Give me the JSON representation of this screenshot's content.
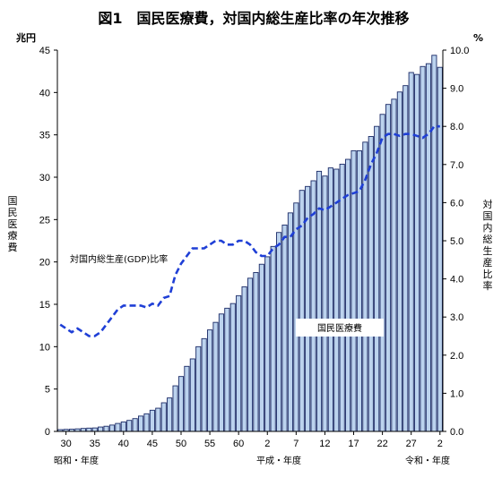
{
  "chart_data": {
    "type": "bar",
    "title": "図1　国民医療費，対国内総生産比率の年次推移",
    "y_unit_left": "兆円",
    "y_unit_right": "%",
    "y_label_left": "国民医療費",
    "y_label_right": "対国内総生産比率",
    "ylim_left": [
      0,
      45
    ],
    "ylim_right": [
      0,
      10
    ],
    "yticks_left": [
      "0",
      "5",
      "10",
      "15",
      "20",
      "25",
      "30",
      "35",
      "40",
      "45"
    ],
    "yticks_right": [
      "0.0",
      "1.0",
      "2.0",
      "3.0",
      "4.0",
      "5.0",
      "6.0",
      "7.0",
      "8.0",
      "9.0",
      "10.0"
    ],
    "x_ticks": [
      "30",
      "35",
      "40",
      "45",
      "50",
      "55",
      "60",
      "2",
      "7",
      "12",
      "17",
      "22",
      "27",
      "2"
    ],
    "era_labels": [
      "昭和・年度",
      "平成・年度",
      "令和・年度"
    ],
    "categories": [
      "S29",
      "S30",
      "S31",
      "S32",
      "S33",
      "S34",
      "S35",
      "S36",
      "S37",
      "S38",
      "S39",
      "S40",
      "S41",
      "S42",
      "S43",
      "S44",
      "S45",
      "S46",
      "S47",
      "S48",
      "S49",
      "S50",
      "S51",
      "S52",
      "S53",
      "S54",
      "S55",
      "S56",
      "S57",
      "S58",
      "S59",
      "S60",
      "S61",
      "S62",
      "S63",
      "H1",
      "H2",
      "H3",
      "H4",
      "H5",
      "H6",
      "H7",
      "H8",
      "H9",
      "H10",
      "H11",
      "H12",
      "H13",
      "H14",
      "H15",
      "H16",
      "H17",
      "H18",
      "H19",
      "H20",
      "H21",
      "H22",
      "H23",
      "H24",
      "H25",
      "H26",
      "H27",
      "H28",
      "H29",
      "H30",
      "R1",
      "R2"
    ],
    "series": [
      {
        "name": "国民医療費",
        "type": "bar",
        "axis": "left",
        "values": [
          0.21,
          0.24,
          0.26,
          0.3,
          0.35,
          0.39,
          0.41,
          0.52,
          0.61,
          0.75,
          0.94,
          1.12,
          1.3,
          1.51,
          1.81,
          2.08,
          2.5,
          2.74,
          3.38,
          3.95,
          5.38,
          6.48,
          7.68,
          8.56,
          10.0,
          10.95,
          11.98,
          12.87,
          13.86,
          14.54,
          15.09,
          16.02,
          17.07,
          18.08,
          18.75,
          19.73,
          20.61,
          21.83,
          23.48,
          24.36,
          25.79,
          26.96,
          28.45,
          28.91,
          29.58,
          30.7,
          30.14,
          31.1,
          30.95,
          31.54,
          32.11,
          33.13,
          33.12,
          34.14,
          34.81,
          36.0,
          37.42,
          38.59,
          39.21,
          40.06,
          40.81,
          42.36,
          42.13,
          43.07,
          43.4,
          44.39,
          42.97
        ]
      },
      {
        "name": "国内総生産(GDP)比率",
        "type": "line",
        "axis": "right",
        "annotation": "対国内総生産(GDP)比率",
        "values": [
          2.8,
          2.7,
          2.6,
          2.7,
          2.6,
          2.5,
          2.5,
          2.6,
          2.8,
          3.0,
          3.2,
          3.3,
          3.3,
          3.3,
          3.3,
          3.25,
          3.35,
          3.3,
          3.5,
          3.55,
          4.1,
          4.4,
          4.6,
          4.8,
          4.8,
          4.8,
          4.9,
          5.0,
          5.0,
          4.9,
          4.9,
          5.0,
          5.0,
          4.9,
          4.7,
          4.6,
          4.6,
          4.8,
          4.9,
          5.1,
          5.1,
          5.3,
          5.4,
          5.6,
          5.7,
          5.85,
          5.8,
          5.9,
          6.0,
          6.1,
          6.2,
          6.25,
          6.3,
          6.6,
          7.0,
          7.3,
          7.7,
          7.8,
          7.8,
          7.75,
          7.8,
          7.8,
          7.75,
          7.7,
          7.8,
          8.0,
          8.0
        ]
      }
    ],
    "series_label": "国民医療費",
    "grid": false
  }
}
